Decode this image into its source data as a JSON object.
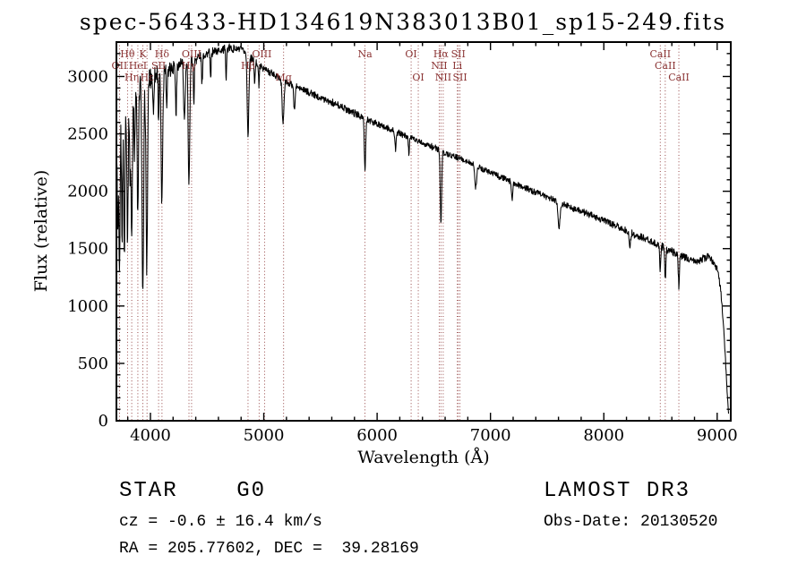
{
  "header": {
    "title": "spec-56433-HD134619N383013B01_sp15-249.fits"
  },
  "annotations": {
    "class_line": "STAR    G0",
    "survey": "LAMOST DR3",
    "cz": "cz = -0.6 ± 16.4 km/s",
    "obs_date": "Obs-Date: 20130520",
    "coords": "RA = 205.77602, DEC =  39.28169"
  },
  "chart_data": {
    "type": "line",
    "title": "spec-56433-HD134619N383013B01_sp15-249.fits",
    "xlabel": "Wavelength (Å)",
    "ylabel": "Flux (relative)",
    "xlim": [
      3700,
      9120
    ],
    "ylim": [
      0,
      3300
    ],
    "x_major_ticks": [
      4000,
      5000,
      6000,
      7000,
      8000,
      9000
    ],
    "x_minor_step": 200,
    "y_major_ticks": [
      0,
      500,
      1000,
      1500,
      2000,
      2500,
      3000
    ],
    "y_minor_step": 100,
    "grid": false,
    "line_color": "#000000",
    "marker_color": "#8b3434",
    "continuum": [
      [
        3700,
        2500
      ],
      [
        3740,
        2650
      ],
      [
        3780,
        2780
      ],
      [
        3820,
        2860
      ],
      [
        3860,
        2900
      ],
      [
        3900,
        2930
      ],
      [
        3950,
        2960
      ],
      [
        4000,
        2990
      ],
      [
        4060,
        3030
      ],
      [
        4120,
        3060
      ],
      [
        4200,
        3090
      ],
      [
        4300,
        3120
      ],
      [
        4400,
        3160
      ],
      [
        4500,
        3200
      ],
      [
        4600,
        3230
      ],
      [
        4700,
        3245
      ],
      [
        4800,
        3235
      ],
      [
        4900,
        3150
      ],
      [
        5000,
        3070
      ],
      [
        5100,
        3010
      ],
      [
        5200,
        2955
      ],
      [
        5300,
        2905
      ],
      [
        5400,
        2860
      ],
      [
        5500,
        2820
      ],
      [
        5600,
        2775
      ],
      [
        5700,
        2730
      ],
      [
        5800,
        2680
      ],
      [
        5900,
        2630
      ],
      [
        6000,
        2585
      ],
      [
        6100,
        2545
      ],
      [
        6200,
        2505
      ],
      [
        6300,
        2465
      ],
      [
        6400,
        2425
      ],
      [
        6500,
        2380
      ],
      [
        6600,
        2335
      ],
      [
        6700,
        2295
      ],
      [
        6800,
        2255
      ],
      [
        6900,
        2210
      ],
      [
        7000,
        2165
      ],
      [
        7100,
        2120
      ],
      [
        7200,
        2075
      ],
      [
        7300,
        2030
      ],
      [
        7400,
        1990
      ],
      [
        7500,
        1950
      ],
      [
        7600,
        1905
      ],
      [
        7700,
        1865
      ],
      [
        7800,
        1825
      ],
      [
        7900,
        1785
      ],
      [
        8000,
        1745
      ],
      [
        8100,
        1700
      ],
      [
        8200,
        1655
      ],
      [
        8300,
        1612
      ],
      [
        8400,
        1570
      ],
      [
        8500,
        1522
      ],
      [
        8600,
        1475
      ],
      [
        8700,
        1432
      ],
      [
        8760,
        1405
      ],
      [
        8820,
        1390
      ],
      [
        8870,
        1415
      ],
      [
        8920,
        1430
      ],
      [
        8960,
        1400
      ],
      [
        9000,
        1330
      ],
      [
        9030,
        1150
      ],
      [
        9055,
        850
      ],
      [
        9075,
        500
      ],
      [
        9090,
        220
      ],
      [
        9100,
        60
      ]
    ],
    "absorption_lines": [
      {
        "wl": 3712,
        "depth": 900,
        "sigma": 5
      },
      {
        "wl": 3727,
        "depth": 1400,
        "sigma": 5
      },
      {
        "wl": 3750,
        "depth": 1050,
        "sigma": 5
      },
      {
        "wl": 3770,
        "depth": 1350,
        "sigma": 5
      },
      {
        "wl": 3798,
        "depth": 1200,
        "sigma": 6
      },
      {
        "wl": 3820,
        "depth": 700,
        "sigma": 4
      },
      {
        "wl": 3835,
        "depth": 1300,
        "sigma": 6
      },
      {
        "wl": 3860,
        "depth": 600,
        "sigma": 4
      },
      {
        "wl": 3889,
        "depth": 1150,
        "sigma": 6
      },
      {
        "wl": 3933,
        "depth": 1900,
        "sigma": 7
      },
      {
        "wl": 3968,
        "depth": 1600,
        "sigma": 7
      },
      {
        "wl": 4026,
        "depth": 350,
        "sigma": 4
      },
      {
        "wl": 4072,
        "depth": 400,
        "sigma": 4
      },
      {
        "wl": 4101,
        "depth": 1150,
        "sigma": 7
      },
      {
        "wl": 4144,
        "depth": 320,
        "sigma": 4
      },
      {
        "wl": 4226,
        "depth": 420,
        "sigma": 5
      },
      {
        "wl": 4300,
        "depth": 500,
        "sigma": 7
      },
      {
        "wl": 4340,
        "depth": 1050,
        "sigma": 7
      },
      {
        "wl": 4383,
        "depth": 380,
        "sigma": 4
      },
      {
        "wl": 4455,
        "depth": 260,
        "sigma": 4
      },
      {
        "wl": 4531,
        "depth": 240,
        "sigma": 4
      },
      {
        "wl": 4668,
        "depth": 240,
        "sigma": 4
      },
      {
        "wl": 4861,
        "depth": 700,
        "sigma": 7
      },
      {
        "wl": 4920,
        "depth": 220,
        "sigma": 4
      },
      {
        "wl": 4957,
        "depth": 180,
        "sigma": 4
      },
      {
        "wl": 5170,
        "depth": 380,
        "sigma": 8
      },
      {
        "wl": 5270,
        "depth": 220,
        "sigma": 6
      },
      {
        "wl": 5893,
        "depth": 450,
        "sigma": 6
      },
      {
        "wl": 6162,
        "depth": 160,
        "sigma": 5
      },
      {
        "wl": 6280,
        "depth": 150,
        "sigma": 4
      },
      {
        "wl": 6563,
        "depth": 640,
        "sigma": 6
      },
      {
        "wl": 6870,
        "depth": 200,
        "sigma": 8
      },
      {
        "wl": 7190,
        "depth": 150,
        "sigma": 6
      },
      {
        "wl": 7605,
        "depth": 220,
        "sigma": 9
      },
      {
        "wl": 8230,
        "depth": 130,
        "sigma": 6
      },
      {
        "wl": 8498,
        "depth": 210,
        "sigma": 5
      },
      {
        "wl": 8542,
        "depth": 270,
        "sigma": 5
      },
      {
        "wl": 8662,
        "depth": 270,
        "sigma": 5
      }
    ],
    "noise_profile": [
      [
        3700,
        130
      ],
      [
        4000,
        110
      ],
      [
        4200,
        75
      ],
      [
        4500,
        45
      ],
      [
        4800,
        38
      ],
      [
        5200,
        33
      ],
      [
        6000,
        30
      ],
      [
        6800,
        27
      ],
      [
        7600,
        28
      ],
      [
        8200,
        32
      ],
      [
        8700,
        36
      ],
      [
        8950,
        40
      ],
      [
        9040,
        25
      ],
      [
        9100,
        12
      ]
    ],
    "line_markers": [
      {
        "label": "Hθ",
        "row": 1,
        "x": 3798,
        "lines": [
          3798
        ]
      },
      {
        "label": "K",
        "row": 1,
        "x": 3933,
        "lines": [
          3933
        ]
      },
      {
        "label": "Hδ",
        "row": 1,
        "x": 4102,
        "lines": [
          4102
        ]
      },
      {
        "label": "OII",
        "row": 2,
        "x": 3727,
        "lines": [
          3727
        ]
      },
      {
        "label": "HeI",
        "row": 2,
        "x": 3889,
        "lines": [
          3889
        ]
      },
      {
        "label": "SII",
        "row": 2,
        "x": 4072,
        "lines": [
          4072
        ]
      },
      {
        "label": "Hη",
        "row": 3,
        "x": 3835,
        "lines": [
          3835
        ]
      },
      {
        "label": "Hε",
        "row": 3,
        "x": 3970,
        "lines": [
          3970
        ]
      },
      {
        "label": "OIII",
        "row": 1,
        "x": 4363,
        "lines": [
          4363
        ]
      },
      {
        "label": "Hγ",
        "row": 2,
        "x": 4340,
        "lines": [
          4340
        ]
      },
      {
        "label": "OIII",
        "row": 1,
        "x": 4983,
        "lines": [
          4959,
          5007
        ]
      },
      {
        "label": "Hβ",
        "row": 2,
        "x": 4861,
        "lines": [
          4861
        ]
      },
      {
        "label": "Mg",
        "row": 3,
        "x": 5175,
        "lines": [
          5175
        ]
      },
      {
        "label": "Na",
        "row": 1,
        "x": 5893,
        "lines": [
          5893
        ]
      },
      {
        "label": "OI",
        "row": 1,
        "x": 6300,
        "lines": [
          6300
        ]
      },
      {
        "label": "OI",
        "row": 3,
        "x": 6363,
        "lines": [
          6363
        ]
      },
      {
        "label": "Hα",
        "row": 1,
        "x": 6563,
        "lines": [
          6563
        ]
      },
      {
        "label": "NII",
        "row": 2,
        "x": 6548,
        "lines": [
          6548
        ]
      },
      {
        "label": "SII",
        "row": 1,
        "x": 6716,
        "lines": [
          6716
        ]
      },
      {
        "label": "Li",
        "row": 2,
        "x": 6708,
        "lines": [
          6708
        ]
      },
      {
        "label": "NII",
        "row": 3,
        "x": 6583,
        "lines": [
          6583
        ]
      },
      {
        "label": "SII",
        "row": 3,
        "x": 6731,
        "lines": [
          6731
        ]
      },
      {
        "label": "CaII",
        "row": 1,
        "x": 8498,
        "lines": [
          8498
        ]
      },
      {
        "label": "CaII",
        "row": 2,
        "x": 8542,
        "lines": [
          8542
        ]
      },
      {
        "label": "CaII",
        "row": 3,
        "x": 8662,
        "lines": [
          8662
        ]
      }
    ]
  }
}
